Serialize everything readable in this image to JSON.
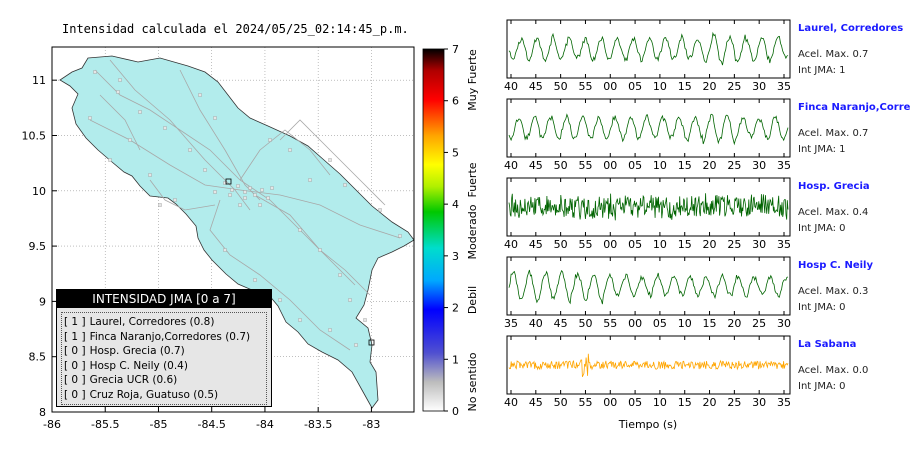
{
  "map": {
    "title": "Intensidad calculada el 2024/05/25_02:14:45_p.m.",
    "x_ticks": [
      "-86",
      "-85.5",
      "-85",
      "-84.5",
      "-84",
      "-83.5",
      "-83"
    ],
    "y_ticks": [
      "11",
      "10.5",
      "10",
      "9.5",
      "9",
      "8.5",
      "8"
    ],
    "land_color": "#b2ecec"
  },
  "colorbar": {
    "ticks": [
      "7",
      "6",
      "5",
      "4",
      "3",
      "2",
      "1",
      "0"
    ],
    "labels": [
      "Muy Fuerte",
      "Fuerte",
      "Moderado",
      "Debil",
      "No sentido"
    ]
  },
  "legend": {
    "title": "INTENSIDAD JMA [0 a 7]",
    "items": [
      {
        "level": "[ 1 ]",
        "label": "Laurel, Corredores (0.8)"
      },
      {
        "level": "[ 1 ]",
        "label": "Finca Naranjo,Corredores (0.7)"
      },
      {
        "level": "[ 0 ]",
        "label": "Hosp. Grecia (0.7)"
      },
      {
        "level": "[ 0 ]",
        "label": "Hosp C. Neily (0.4)"
      },
      {
        "level": "[ 0 ]",
        "label": "Grecia UCR (0.6)"
      },
      {
        "level": "[ 0 ]",
        "label": "Cruz Roja, Guatuso (0.5)"
      }
    ]
  },
  "stations": [
    {
      "name": "Laurel, Corredores",
      "accel": "Acel. Max. 0.7",
      "jma": "Int JMA: 1",
      "ticks": [
        "40",
        "45",
        "50",
        "55",
        "00",
        "05",
        "10",
        "15",
        "20",
        "25",
        "30",
        "35"
      ],
      "color": "#006400",
      "amp": 15
    },
    {
      "name": "Finca Naranjo,Corredores",
      "accel": "Acel. Max. 0.7",
      "jma": "Int JMA: 1",
      "ticks": [
        "40",
        "45",
        "50",
        "55",
        "00",
        "05",
        "10",
        "15",
        "20",
        "25",
        "30",
        "35"
      ],
      "color": "#006400",
      "amp": 15
    },
    {
      "name": "Hosp. Grecia",
      "accel": "Acel. Max. 0.4",
      "jma": "Int JMA: 0",
      "ticks": [
        "40",
        "45",
        "50",
        "55",
        "00",
        "05",
        "10",
        "15",
        "20",
        "25",
        "30",
        "35"
      ],
      "color": "#006400",
      "amp": 14
    },
    {
      "name": "Hosp C. Neily",
      "accel": "Acel. Max. 0.3",
      "jma": "Int JMA: 0",
      "ticks": [
        "35",
        "40",
        "45",
        "50",
        "55",
        "00",
        "05",
        "10",
        "15",
        "20",
        "25",
        "30"
      ],
      "color": "#006400",
      "amp": 17
    },
    {
      "name": "La Sabana",
      "accel": "Acel. Max. 0.0",
      "jma": "Int JMA: 0",
      "ticks": [
        "40",
        "45",
        "50",
        "55",
        "00",
        "05",
        "10",
        "15",
        "20",
        "25",
        "30",
        "35"
      ],
      "color": "#ffa500",
      "amp": 7
    }
  ],
  "xlabel": "Tiempo (s)",
  "chart_data": [
    {
      "type": "scatter",
      "title": "Intensidad calculada el 2024/05/25_02:14:45_p.m.",
      "xlim": [
        -86,
        -82.6
      ],
      "ylim": [
        8,
        11.3
      ],
      "x_ticks": [
        -86,
        -85.5,
        -85,
        -84.5,
        -84,
        -83.5,
        -83
      ],
      "y_ticks": [
        8,
        8.5,
        9,
        9.5,
        10,
        10.5,
        11
      ],
      "colorbar": {
        "min": 0,
        "max": 7,
        "labels": [
          "No sentido",
          "Debil",
          "Moderado",
          "Fuerte",
          "Muy Fuerte"
        ]
      },
      "legend_title": "INTENSIDAD JMA [0 a 7]",
      "grid": true
    },
    {
      "type": "line",
      "xlabel": "Tiempo (s)",
      "series": [
        {
          "name": "Laurel, Corredores",
          "accel_max": 0.7,
          "int_jma": 1
        },
        {
          "name": "Finca Naranjo,Corredores",
          "accel_max": 0.7,
          "int_jma": 1
        },
        {
          "name": "Hosp. Grecia",
          "accel_max": 0.4,
          "int_jma": 0
        },
        {
          "name": "Hosp C. Neily",
          "accel_max": 0.3,
          "int_jma": 0
        },
        {
          "name": "La Sabana",
          "accel_max": 0.0,
          "int_jma": 0
        }
      ]
    }
  ]
}
